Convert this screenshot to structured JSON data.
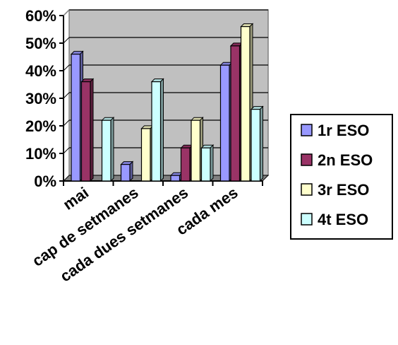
{
  "chart_data": {
    "type": "bar",
    "style": "3d-clustered-column",
    "categories": [
      "mai",
      "cap de setmanes",
      "cada dues setmanes",
      "cada mes"
    ],
    "series": [
      {
        "name": "1r ESO",
        "color": "#9999FF",
        "values": [
          46,
          6,
          2,
          42
        ]
      },
      {
        "name": "2n ESO",
        "color": "#993366",
        "values": [
          36,
          0,
          12,
          49
        ]
      },
      {
        "name": "3r ESO",
        "color": "#FFFFCC",
        "values": [
          0,
          19,
          22,
          56
        ]
      },
      {
        "name": "4t ESO",
        "color": "#CCFFFF",
        "values": [
          22,
          36,
          12,
          26
        ]
      }
    ],
    "ylim": [
      0,
      60
    ],
    "yticks": [
      "0%",
      "10%",
      "20%",
      "30%",
      "40%",
      "50%",
      "60%"
    ],
    "grid": true,
    "legend_position": "right",
    "plot_background": "#C0C0C0"
  }
}
